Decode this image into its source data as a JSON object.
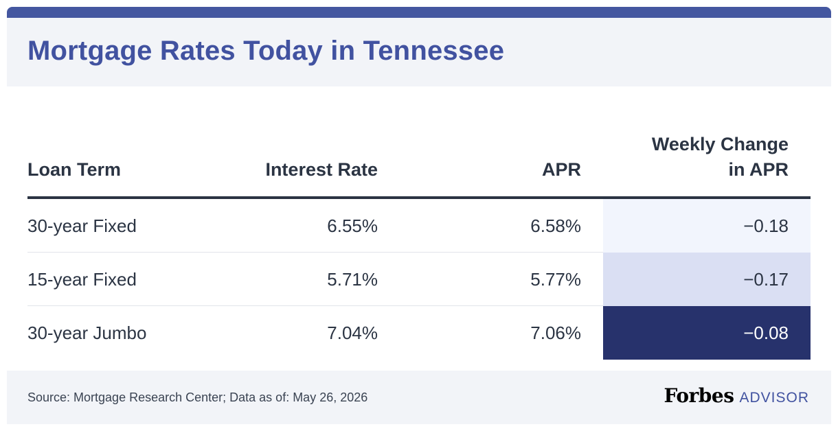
{
  "header": {
    "title": "Mortgage Rates Today in Tennessee"
  },
  "chart_data": {
    "type": "table",
    "title": "Mortgage Rates Today in Tennessee",
    "columns": [
      "Loan Term",
      "Interest Rate",
      "APR",
      "Weekly Change\nin APR"
    ],
    "rows": [
      {
        "term": "30-year Fixed",
        "interest_rate": "6.55%",
        "apr": "6.58%",
        "weekly_change": "−0.18",
        "cell_color": "#f2f5fd",
        "text_color": "#2b3443"
      },
      {
        "term": "15-year Fixed",
        "interest_rate": "5.71%",
        "apr": "5.77%",
        "weekly_change": "−0.17",
        "cell_color": "#dadff3",
        "text_color": "#2b3443"
      },
      {
        "term": "30-year Jumbo",
        "interest_rate": "7.04%",
        "apr": "7.06%",
        "weekly_change": "−0.08",
        "cell_color": "#27326c",
        "text_color": "#ffffff"
      }
    ]
  },
  "footer": {
    "source": "Source: Mortgage Research Center; Data as of: May 26, 2026",
    "brand_main": "Forbes",
    "brand_sub": "ADVISOR"
  },
  "colors": {
    "accent": "#4152a0",
    "topbar": "#4457a0",
    "panel": "#f2f4f8",
    "text": "#2b3443"
  }
}
